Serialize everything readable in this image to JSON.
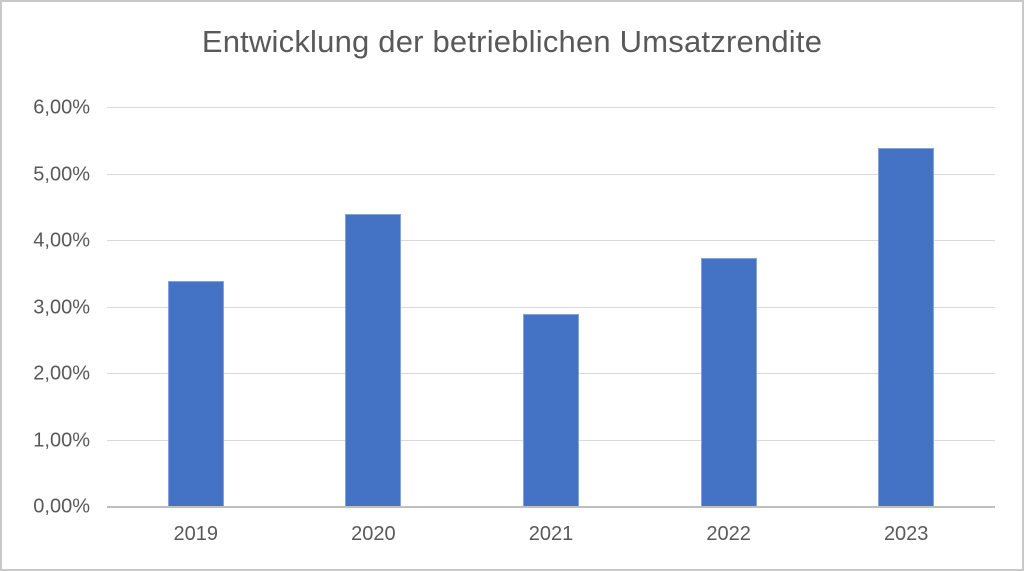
{
  "chart_data": {
    "type": "bar",
    "title": "Entwicklung der betrieblichen Umsatzrendite",
    "categories": [
      "2019",
      "2020",
      "2021",
      "2022",
      "2023"
    ],
    "values": [
      3.4,
      4.4,
      2.9,
      3.75,
      5.4
    ],
    "value_unit": "%",
    "xlabel": "",
    "ylabel": "",
    "ylim": [
      0,
      6
    ],
    "yticks": [
      {
        "value": 0,
        "label": "0,00%"
      },
      {
        "value": 1,
        "label": "1,00%"
      },
      {
        "value": 2,
        "label": "2,00%"
      },
      {
        "value": 3,
        "label": "3,00%"
      },
      {
        "value": 4,
        "label": "4,00%"
      },
      {
        "value": 5,
        "label": "5,00%"
      },
      {
        "value": 6,
        "label": "6,00%"
      }
    ],
    "grid": true,
    "legend": false,
    "colors": {
      "bar": "#4472C4",
      "gridline": "#D9D9D9",
      "axis_line": "#BFBFBF",
      "text": "#595959",
      "frame_border": "#C8C8C8",
      "background": "#FFFFFF"
    }
  }
}
